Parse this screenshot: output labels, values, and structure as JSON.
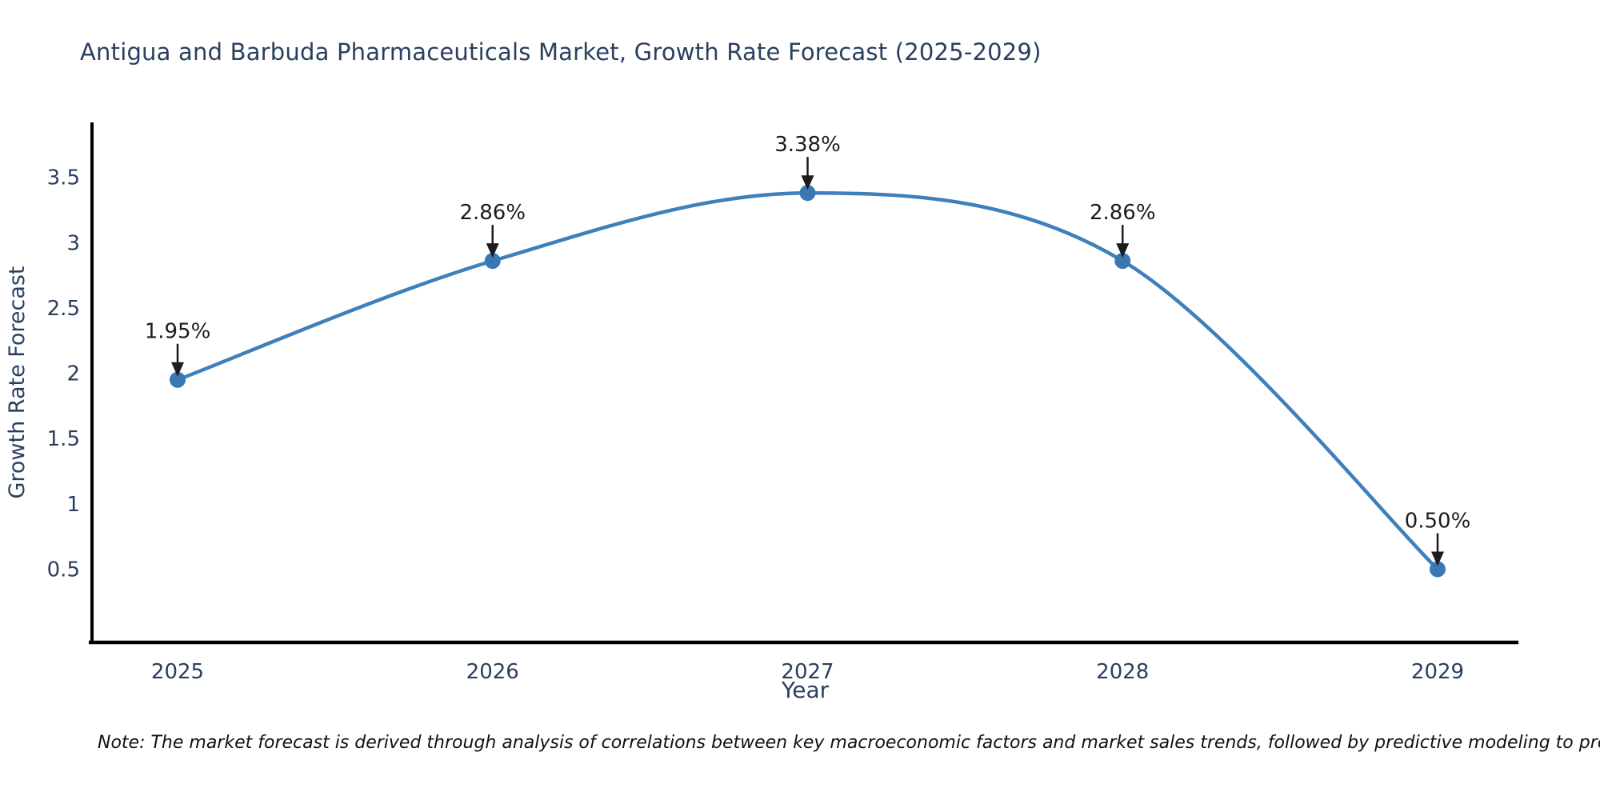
{
  "title": "Antigua and Barbuda Pharmaceuticals Market, Growth Rate Forecast (2025-2029)",
  "note": "Note: The market forecast is derived through analysis of correlations between key macroeconomic factors and market sales trends, followed by predictive modeling to project future sales",
  "colors": {
    "line": "#3f7fba",
    "marker": "#3a78b4",
    "title_text": "#2a3f5f",
    "axis_text": "#2a3f5f",
    "annotation_text": "#1c1c1c",
    "axis_line": "#000000"
  },
  "chart_data": {
    "type": "line",
    "title": "Antigua and Barbuda Pharmaceuticals Market, Growth Rate Forecast (2025-2029)",
    "x": [
      "2025",
      "2026",
      "2027",
      "2028",
      "2029"
    ],
    "values": [
      1.95,
      2.86,
      3.38,
      2.86,
      0.5
    ],
    "point_labels": [
      "1.95%",
      "2.86%",
      "3.38%",
      "2.86%",
      "0.50%"
    ],
    "xlabel": "Year",
    "ylabel": "Growth Rate Forecast",
    "yticks": [
      0.5,
      1,
      1.5,
      2,
      2.5,
      3,
      3.5
    ],
    "ylim": [
      -0.06,
      3.92
    ],
    "line_shape": "spline",
    "grid": false,
    "legend": false,
    "annotations": "black arrow pointing down from each value label to its data point"
  }
}
